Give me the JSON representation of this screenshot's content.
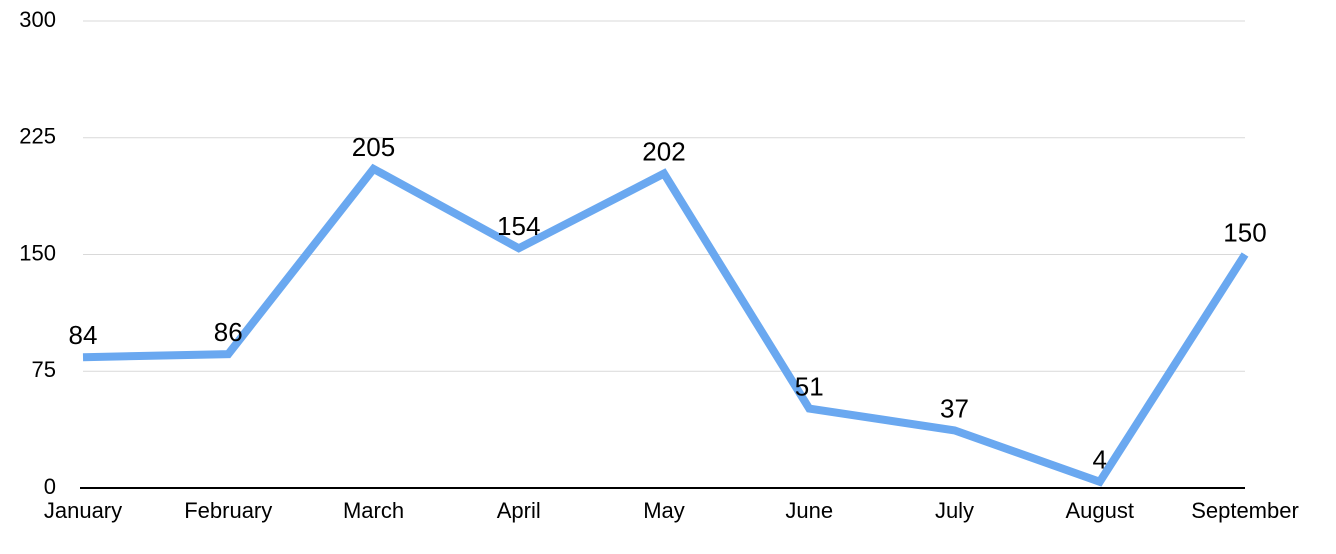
{
  "chart_data": {
    "type": "line",
    "categories": [
      "January",
      "February",
      "March",
      "April",
      "May",
      "June",
      "July",
      "August",
      "September"
    ],
    "series": [
      {
        "values": [
          84,
          86,
          205,
          154,
          202,
          51,
          37,
          4,
          150
        ],
        "color": "#6aa8f0"
      }
    ],
    "ylim": [
      0,
      300
    ],
    "yticks": [
      0,
      75,
      150,
      225,
      300
    ],
    "grid": true
  }
}
